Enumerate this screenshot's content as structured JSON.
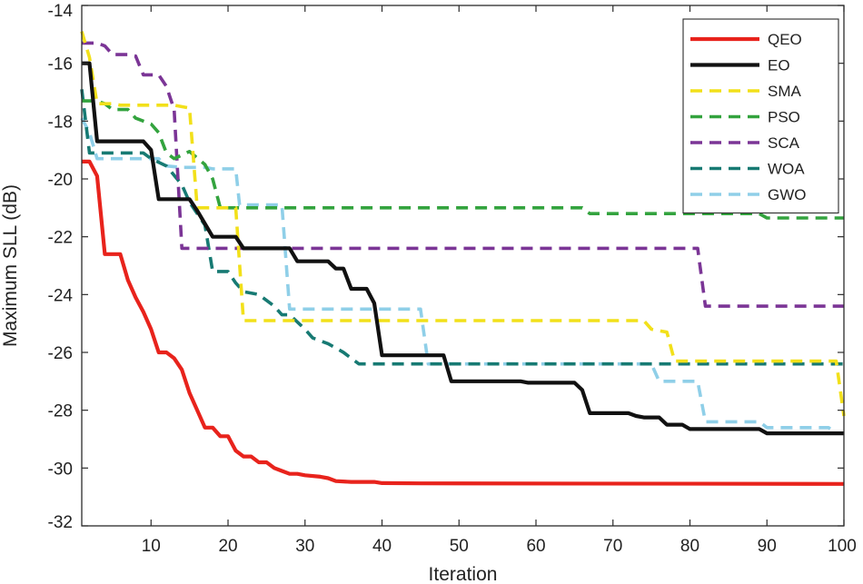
{
  "chart_data": {
    "type": "line",
    "title": "",
    "xlabel": "Iteration",
    "ylabel": "Maximum SLL (dB)",
    "xlim": [
      1,
      100
    ],
    "ylim": [
      -32,
      -14
    ],
    "xticks": [
      10,
      20,
      30,
      40,
      50,
      60,
      70,
      80,
      90,
      100
    ],
    "yticks": [
      -32,
      -30,
      -28,
      -26,
      -24,
      -22,
      -20,
      -18,
      -16,
      -14
    ],
    "grid": false,
    "legend_position": "top-right",
    "series": [
      {
        "name": "QEO",
        "color": "#e8231c",
        "dashed": false,
        "points": [
          [
            1,
            -19.4
          ],
          [
            2,
            -19.4
          ],
          [
            3,
            -19.9
          ],
          [
            4,
            -22.6
          ],
          [
            5,
            -22.6
          ],
          [
            6,
            -22.6
          ],
          [
            7,
            -23.5
          ],
          [
            8,
            -24.1
          ],
          [
            9,
            -24.6
          ],
          [
            10,
            -25.2
          ],
          [
            11,
            -26.0
          ],
          [
            12,
            -26.0
          ],
          [
            13,
            -26.2
          ],
          [
            14,
            -26.6
          ],
          [
            15,
            -27.4
          ],
          [
            16,
            -28.0
          ],
          [
            17,
            -28.6
          ],
          [
            18,
            -28.6
          ],
          [
            19,
            -28.9
          ],
          [
            20,
            -28.9
          ],
          [
            21,
            -29.4
          ],
          [
            22,
            -29.6
          ],
          [
            23,
            -29.6
          ],
          [
            24,
            -29.8
          ],
          [
            25,
            -29.8
          ],
          [
            26,
            -30.0
          ],
          [
            27,
            -30.1
          ],
          [
            28,
            -30.2
          ],
          [
            29,
            -30.2
          ],
          [
            30,
            -30.25
          ],
          [
            32,
            -30.3
          ],
          [
            33,
            -30.35
          ],
          [
            34,
            -30.45
          ],
          [
            36,
            -30.48
          ],
          [
            39,
            -30.48
          ],
          [
            40,
            -30.52
          ],
          [
            45,
            -30.53
          ],
          [
            100,
            -30.55
          ]
        ]
      },
      {
        "name": "EO",
        "color": "#111111",
        "dashed": false,
        "points": [
          [
            1,
            -16.0
          ],
          [
            2,
            -16.0
          ],
          [
            3,
            -18.7
          ],
          [
            4,
            -18.7
          ],
          [
            9,
            -18.7
          ],
          [
            10,
            -19.0
          ],
          [
            11,
            -20.7
          ],
          [
            15,
            -20.7
          ],
          [
            16,
            -21.1
          ],
          [
            18,
            -22.0
          ],
          [
            21,
            -22.0
          ],
          [
            22,
            -22.4
          ],
          [
            28,
            -22.4
          ],
          [
            29,
            -22.85
          ],
          [
            33,
            -22.85
          ],
          [
            34,
            -23.1
          ],
          [
            35,
            -23.1
          ],
          [
            36,
            -23.8
          ],
          [
            37,
            -23.8
          ],
          [
            38,
            -23.8
          ],
          [
            39,
            -24.3
          ],
          [
            40,
            -26.1
          ],
          [
            48,
            -26.1
          ],
          [
            49,
            -27.0
          ],
          [
            55,
            -27.0
          ],
          [
            58,
            -27.0
          ],
          [
            59,
            -27.05
          ],
          [
            65,
            -27.05
          ],
          [
            66,
            -27.3
          ],
          [
            67,
            -28.1
          ],
          [
            72,
            -28.1
          ],
          [
            73,
            -28.2
          ],
          [
            74,
            -28.25
          ],
          [
            76,
            -28.25
          ],
          [
            77,
            -28.5
          ],
          [
            79,
            -28.5
          ],
          [
            80,
            -28.65
          ],
          [
            89,
            -28.65
          ],
          [
            90,
            -28.8
          ],
          [
            100,
            -28.8
          ]
        ]
      },
      {
        "name": "SMA",
        "color": "#f2e01a",
        "dashed": true,
        "points": [
          [
            1,
            -14.9
          ],
          [
            2,
            -15.8
          ],
          [
            3,
            -17.4
          ],
          [
            5,
            -17.4
          ],
          [
            6,
            -17.45
          ],
          [
            13,
            -17.45
          ],
          [
            15,
            -17.55
          ],
          [
            16,
            -21.0
          ],
          [
            21,
            -21.0
          ],
          [
            22,
            -24.9
          ],
          [
            74,
            -24.9
          ],
          [
            75,
            -25.2
          ],
          [
            77,
            -25.3
          ],
          [
            78,
            -26.3
          ],
          [
            98,
            -26.3
          ],
          [
            99,
            -26.3
          ],
          [
            100,
            -28.2
          ]
        ]
      },
      {
        "name": "PSO",
        "color": "#33a33e",
        "dashed": true,
        "points": [
          [
            1,
            -17.3
          ],
          [
            3,
            -17.3
          ],
          [
            4,
            -17.4
          ],
          [
            5,
            -17.6
          ],
          [
            7,
            -17.6
          ],
          [
            8,
            -17.9
          ],
          [
            10,
            -18.1
          ],
          [
            11,
            -18.4
          ],
          [
            12,
            -19.1
          ],
          [
            13,
            -19.3
          ],
          [
            15,
            -19.05
          ],
          [
            17,
            -19.5
          ],
          [
            18,
            -20.0
          ],
          [
            19,
            -21.0
          ],
          [
            66,
            -21.0
          ],
          [
            67,
            -21.2
          ],
          [
            89,
            -21.2
          ],
          [
            90,
            -21.35
          ],
          [
            100,
            -21.35
          ]
        ]
      },
      {
        "name": "SCA",
        "color": "#7b3596",
        "dashed": true,
        "points": [
          [
            1,
            -15.3
          ],
          [
            3,
            -15.3
          ],
          [
            4,
            -15.4
          ],
          [
            5,
            -15.7
          ],
          [
            7,
            -15.7
          ],
          [
            8,
            -15.75
          ],
          [
            9,
            -16.4
          ],
          [
            11,
            -16.4
          ],
          [
            12,
            -16.8
          ],
          [
            13,
            -17.6
          ],
          [
            14,
            -22.4
          ],
          [
            81,
            -22.4
          ],
          [
            82,
            -24.4
          ],
          [
            100,
            -24.4
          ]
        ]
      },
      {
        "name": "WOA",
        "color": "#177a73",
        "dashed": true,
        "points": [
          [
            1,
            -16.9
          ],
          [
            2,
            -19.1
          ],
          [
            3,
            -19.1
          ],
          [
            9,
            -19.1
          ],
          [
            10,
            -19.3
          ],
          [
            12,
            -19.55
          ],
          [
            14,
            -20.2
          ],
          [
            15,
            -20.8
          ],
          [
            17,
            -21.6
          ],
          [
            18,
            -23.2
          ],
          [
            20,
            -23.2
          ],
          [
            21,
            -23.6
          ],
          [
            22,
            -23.9
          ],
          [
            24,
            -24.0
          ],
          [
            26,
            -24.4
          ],
          [
            27,
            -24.7
          ],
          [
            28,
            -24.7
          ],
          [
            30,
            -25.2
          ],
          [
            31,
            -25.5
          ],
          [
            33,
            -25.7
          ],
          [
            34,
            -25.85
          ],
          [
            35,
            -26.0
          ],
          [
            36,
            -26.2
          ],
          [
            37,
            -26.4
          ],
          [
            100,
            -26.4
          ]
        ]
      },
      {
        "name": "GWO",
        "color": "#8fcfe8",
        "dashed": true,
        "points": [
          [
            1,
            -17.9
          ],
          [
            2,
            -18.4
          ],
          [
            3,
            -19.3
          ],
          [
            11,
            -19.3
          ],
          [
            12,
            -19.55
          ],
          [
            14,
            -19.6
          ],
          [
            15,
            -19.6
          ],
          [
            17,
            -19.6
          ],
          [
            18,
            -19.65
          ],
          [
            21,
            -19.65
          ],
          [
            21.5,
            -20.9
          ],
          [
            24,
            -20.9
          ],
          [
            27,
            -20.9
          ],
          [
            28,
            -24.5
          ],
          [
            45,
            -24.5
          ],
          [
            46,
            -26.4
          ],
          [
            75,
            -26.4
          ],
          [
            76,
            -27.0
          ],
          [
            81,
            -27.0
          ],
          [
            82,
            -28.4
          ],
          [
            89,
            -28.4
          ],
          [
            90,
            -28.6
          ],
          [
            98,
            -28.6
          ],
          [
            99,
            -28.8
          ],
          [
            100,
            -28.8
          ]
        ]
      }
    ]
  }
}
